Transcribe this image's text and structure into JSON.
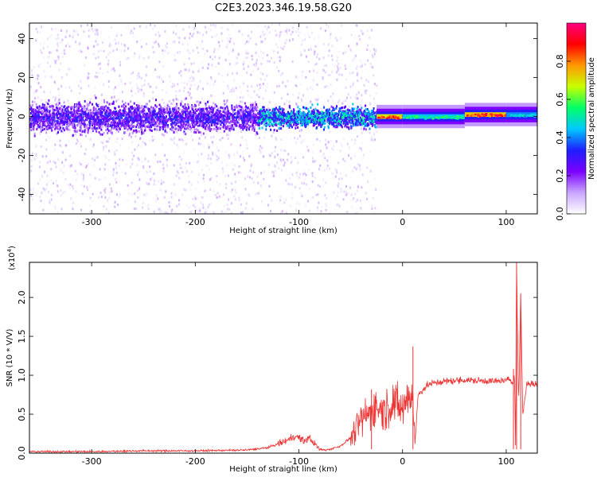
{
  "title": "C2E3.2023.346.19.58.G20",
  "chart_data": [
    {
      "type": "heatmap",
      "xlabel": "Height of straight line (km)",
      "ylabel": "Frequency (Hz)",
      "xlim": [
        -360,
        130
      ],
      "ylim": [
        -50,
        48
      ],
      "xticks": [
        -300,
        -200,
        -100,
        0,
        100
      ],
      "yticks": [
        -40,
        -20,
        0,
        20,
        40
      ],
      "colorbar": {
        "label": "Normalized spectral amplitude",
        "range": [
          0.0,
          1.0
        ],
        "ticks": [
          "0.0",
          "0.2",
          "0.4",
          "0.6",
          "0.8"
        ],
        "colors": [
          "#ffffff",
          "#c9a6ff",
          "#7b00ff",
          "#1e1eff",
          "#00c8ff",
          "#00ff66",
          "#c8ff00",
          "#ff9900",
          "#ff0000",
          "#ff007f"
        ]
      },
      "regions": [
        {
          "x_range": [
            -360,
            -140
          ],
          "core_amplitude": 0.3,
          "core_band_hz": [
            -10,
            10
          ],
          "scatter_band_hz": [
            -50,
            48
          ]
        },
        {
          "x_range": [
            -140,
            -25
          ],
          "core_amplitude": 0.45,
          "core_band_hz": [
            -8,
            6
          ],
          "scatter_band_hz": [
            -50,
            48
          ]
        },
        {
          "x_range": [
            -25,
            0
          ],
          "core_amplitude": 0.85,
          "center_hz": 0
        },
        {
          "x_range": [
            0,
            60
          ],
          "core_amplitude": 0.55,
          "center_hz": 0
        },
        {
          "x_range": [
            60,
            100
          ],
          "core_amplitude": 0.9,
          "center_hz": 1
        },
        {
          "x_range": [
            100,
            130
          ],
          "core_amplitude": 0.5,
          "center_hz": 1
        }
      ]
    },
    {
      "type": "line",
      "xlabel": "Height of straight line (km)",
      "ylabel": "SNR (10 * V/V)",
      "y_multiplier": "(x10",
      "y_multiplier_exp": "4",
      "y_multiplier_close": ")",
      "xlim": [
        -360,
        130
      ],
      "ylim": [
        0,
        2.45
      ],
      "xticks": [
        -300,
        -200,
        -100,
        0,
        100
      ],
      "yticks": [
        "0.0",
        "0.5",
        "1.0",
        "1.5",
        "2.0"
      ],
      "series": [
        {
          "color": "#ee3333",
          "x": [
            -360,
            -300,
            -250,
            -200,
            -150,
            -130,
            -120,
            -110,
            -105,
            -100,
            -95,
            -90,
            -85,
            -80,
            -75,
            -70,
            -60,
            -50,
            -45,
            -40,
            -35,
            -30,
            -25,
            -20,
            -15,
            -10,
            -5,
            0,
            5,
            10,
            12,
            15,
            20,
            25,
            30,
            40,
            50,
            60,
            70,
            80,
            90,
            95,
            100,
            104,
            106,
            108,
            109,
            110,
            112,
            114,
            116,
            120,
            125,
            130
          ],
          "values": [
            0.02,
            0.02,
            0.03,
            0.03,
            0.04,
            0.07,
            0.12,
            0.17,
            0.22,
            0.2,
            0.15,
            0.2,
            0.12,
            0.05,
            0.04,
            0.05,
            0.09,
            0.2,
            0.3,
            0.42,
            0.48,
            0.55,
            0.6,
            0.55,
            0.58,
            0.66,
            0.62,
            0.55,
            0.74,
            0.73,
            0.12,
            0.75,
            0.82,
            0.88,
            0.9,
            0.92,
            0.93,
            0.94,
            0.93,
            0.93,
            0.92,
            0.93,
            0.93,
            0.95,
            0.9,
            1.0,
            0.1,
            2.45,
            0.6,
            2.05,
            0.5,
            0.9,
            0.89,
            0.88
          ]
        }
      ],
      "spikes": [
        {
          "x": -30,
          "value": 0.82
        },
        {
          "x": 10,
          "value": 1.37
        },
        {
          "x": 107,
          "value": 1.08
        },
        {
          "x": 110,
          "value": 2.45
        },
        {
          "x": 114,
          "value": 2.05
        }
      ]
    }
  ]
}
